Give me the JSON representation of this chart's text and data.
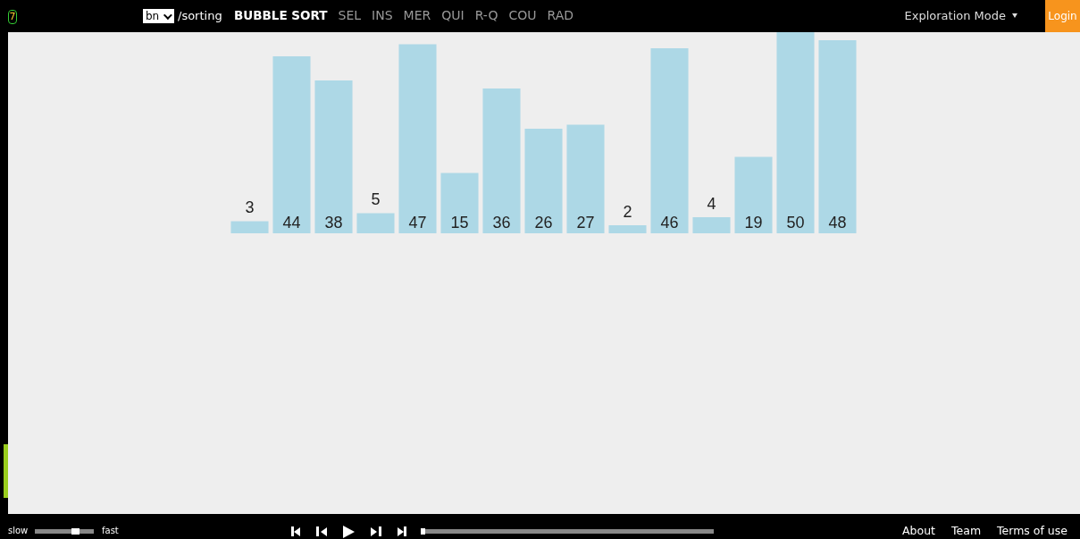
{
  "chart_data": {
    "type": "bar",
    "categories": [
      null,
      null,
      null,
      null,
      null,
      null,
      null,
      null,
      null,
      null,
      null,
      null,
      null,
      null,
      null
    ],
    "values": [
      3,
      44,
      38,
      5,
      47,
      15,
      36,
      26,
      27,
      2,
      46,
      4,
      19,
      50,
      48
    ],
    "color": "#add8e6",
    "data_labels": true,
    "annotations": [
      "7",
      "bn",
      "/sorting",
      "BUBBLE SORT",
      "SEL",
      "INS",
      "MER",
      "QUI",
      "R-Q",
      "COU",
      "RAD",
      "Exploration Mode",
      "Login",
      "slow",
      "fast",
      "About",
      "Team",
      "Terms of use"
    ]
  }
}
